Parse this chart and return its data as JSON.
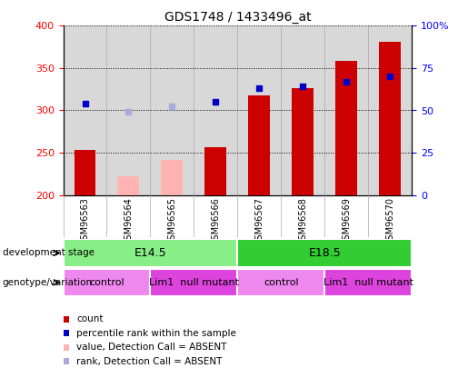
{
  "title": "GDS1748 / 1433496_at",
  "samples": [
    "GSM96563",
    "GSM96564",
    "GSM96565",
    "GSM96566",
    "GSM96567",
    "GSM96568",
    "GSM96569",
    "GSM96570"
  ],
  "count_values": [
    253,
    null,
    null,
    257,
    318,
    326,
    358,
    381
  ],
  "count_absent_values": [
    null,
    222,
    242,
    null,
    null,
    null,
    null,
    null
  ],
  "rank_values": [
    308,
    null,
    null,
    310,
    326,
    328,
    334,
    340
  ],
  "rank_absent_values": [
    null,
    298,
    305,
    null,
    null,
    null,
    null,
    null
  ],
  "ylim_left": [
    200,
    400
  ],
  "ylim_right": [
    0,
    100
  ],
  "yticks_left": [
    200,
    250,
    300,
    350,
    400
  ],
  "yticks_right": [
    0,
    25,
    50,
    75,
    100
  ],
  "yticklabels_right": [
    "0",
    "25",
    "50",
    "75",
    "100%"
  ],
  "bar_color": "#cc0000",
  "bar_absent_color": "#ffb3b3",
  "rank_color": "#0000cc",
  "rank_absent_color": "#aaaadd",
  "plot_bg_color": "#d8d8d8",
  "development_stage_groups": [
    {
      "label": "E14.5",
      "start": 0,
      "end": 3,
      "color": "#88ee88"
    },
    {
      "label": "E18.5",
      "start": 4,
      "end": 7,
      "color": "#33cc33"
    }
  ],
  "genotype_groups": [
    {
      "label": "control",
      "start": 0,
      "end": 1,
      "color": "#ee88ee"
    },
    {
      "label": "Lim1  null mutant",
      "start": 2,
      "end": 3,
      "color": "#dd44dd"
    },
    {
      "label": "control",
      "start": 4,
      "end": 5,
      "color": "#ee88ee"
    },
    {
      "label": "Lim1  null mutant",
      "start": 6,
      "end": 7,
      "color": "#dd44dd"
    }
  ],
  "legend_items": [
    {
      "label": "count",
      "color": "#cc0000"
    },
    {
      "label": "percentile rank within the sample",
      "color": "#0000cc"
    },
    {
      "label": "value, Detection Call = ABSENT",
      "color": "#ffb3b3"
    },
    {
      "label": "rank, Detection Call = ABSENT",
      "color": "#aaaadd"
    }
  ]
}
